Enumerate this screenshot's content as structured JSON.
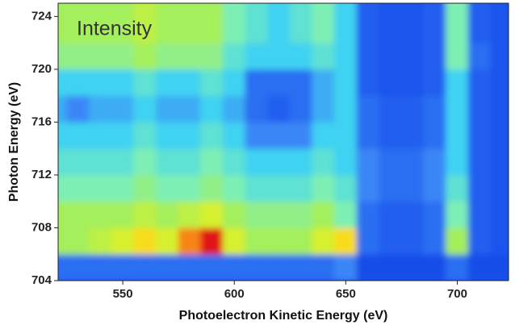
{
  "chart_data": {
    "type": "heatmap",
    "annotation": "Intensity",
    "x_label": "Photoelectron Kinetic Energy (eV)",
    "y_label": "Photon Energy (eV)",
    "xlim": [
      521,
      723
    ],
    "ylim": [
      704,
      725
    ],
    "xticks": [
      550,
      600,
      650,
      700
    ],
    "yticks": [
      704,
      708,
      712,
      716,
      720,
      724
    ],
    "colorscale": [
      "#0c2fd0",
      "#1c55ee",
      "#3a86f6",
      "#3fd2f2",
      "#7eefb4",
      "#a4ef5c",
      "#d6f02e",
      "#f8dc1e",
      "#f88414",
      "#e01414"
    ],
    "x": [
      520,
      530,
      540,
      550,
      560,
      570,
      580,
      590,
      600,
      610,
      620,
      630,
      640,
      650,
      660,
      670,
      680,
      690,
      700,
      710,
      720
    ],
    "y": [
      705,
      707,
      709,
      711,
      713,
      715,
      717,
      719,
      721,
      723,
      725
    ],
    "z": [
      [
        1.5,
        1.5,
        1.5,
        1.5,
        1.5,
        1.5,
        1.5,
        1.5,
        1.5,
        1.5,
        1.5,
        1.5,
        1.5,
        2,
        0.8,
        0.8,
        0.8,
        0.8,
        1.5,
        0.8,
        0.8
      ],
      [
        5,
        5,
        5.5,
        6,
        7,
        6,
        8,
        9,
        6,
        5,
        5,
        5,
        6,
        7,
        1.5,
        1.2,
        1.2,
        1.5,
        5,
        1.2,
        1
      ],
      [
        5,
        5,
        5,
        5,
        5.5,
        5,
        5.5,
        6,
        5,
        4.5,
        4.5,
        4.5,
        5,
        4,
        1.5,
        1.2,
        1.2,
        1.5,
        4,
        1.2,
        1
      ],
      [
        4,
        4,
        4,
        4,
        4.5,
        4,
        4,
        4.5,
        4,
        3.5,
        3.5,
        3.5,
        4,
        3.5,
        2,
        1.5,
        1.5,
        2,
        3.5,
        1.2,
        1
      ],
      [
        3.5,
        3.5,
        3.5,
        3.5,
        4,
        3.5,
        3.5,
        4,
        3.5,
        3,
        3,
        3,
        3.5,
        3,
        2,
        1.5,
        1.5,
        2,
        3,
        1.2,
        1
      ],
      [
        3,
        3,
        3,
        3,
        3.5,
        3,
        3,
        3.5,
        3,
        2,
        2,
        2,
        3,
        3,
        1.5,
        1.2,
        1.2,
        1.5,
        3,
        1.2,
        1
      ],
      [
        2.5,
        2,
        2.5,
        2.5,
        3,
        2.5,
        2.5,
        3,
        2.5,
        1.5,
        1.2,
        1.5,
        2.5,
        3,
        1.5,
        1.2,
        1.2,
        1.5,
        3,
        1.2,
        1
      ],
      [
        3,
        3,
        3,
        3,
        3.5,
        3,
        3,
        3.5,
        3,
        1.5,
        1.5,
        1.5,
        2.5,
        3,
        1.2,
        1,
        1,
        1.2,
        3,
        1.2,
        1
      ],
      [
        4.5,
        4.5,
        4.5,
        4.5,
        5,
        4.5,
        4.5,
        4.5,
        3.5,
        3,
        3,
        3,
        3.5,
        3,
        1.2,
        1,
        1,
        1.2,
        4,
        1.5,
        1
      ],
      [
        5,
        5,
        5,
        5,
        5.5,
        5,
        5,
        5,
        4,
        3.5,
        3,
        3.5,
        4,
        3,
        1.2,
        1,
        1,
        1.2,
        4,
        1.2,
        1
      ],
      [
        5,
        5,
        5,
        5,
        5.5,
        5,
        5,
        5,
        4,
        3.5,
        3,
        3.5,
        4,
        3,
        1.2,
        1,
        1,
        1.2,
        4,
        1.2,
        1
      ]
    ]
  }
}
